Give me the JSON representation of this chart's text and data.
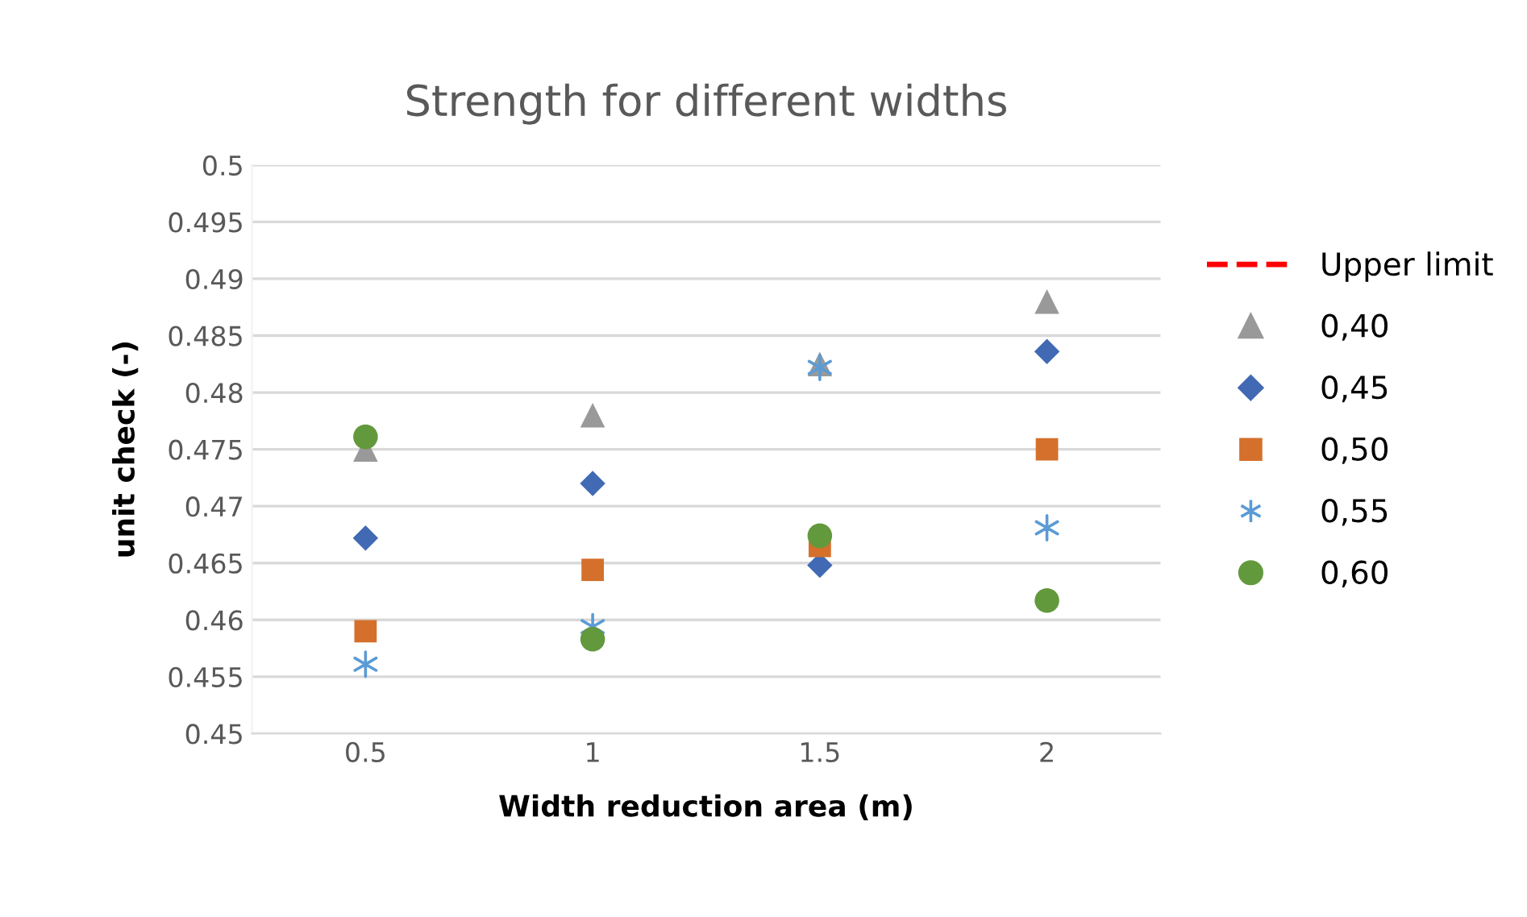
{
  "chart_data": {
    "type": "scatter",
    "title": "Strength for different widths",
    "xlabel": "Width reduction area (m)",
    "ylabel": "unit check (-)",
    "categories": [
      "0.5",
      "1",
      "1.5",
      "2"
    ],
    "ylim": [
      0.45,
      0.5
    ],
    "yticks": [
      0.45,
      0.455,
      0.46,
      0.465,
      0.47,
      0.475,
      0.48,
      0.485,
      0.49,
      0.495,
      0.5
    ],
    "grid": "y",
    "legend": "right",
    "series": [
      {
        "name": "Upper limit",
        "type": "line",
        "line_style": "dashed",
        "color": "#ff0000",
        "values": [
          null,
          null,
          null,
          null
        ]
      },
      {
        "name": "0,40",
        "marker": "triangle",
        "color": "#999999",
        "values": [
          0.475,
          0.478,
          0.4825,
          0.488
        ]
      },
      {
        "name": "0,45",
        "marker": "diamond",
        "color": "#4169b4",
        "values": [
          0.4672,
          0.472,
          0.4648,
          0.4836
        ]
      },
      {
        "name": "0,50",
        "marker": "square",
        "color": "#d4702c",
        "values": [
          0.459,
          0.4644,
          0.4665,
          0.475
        ]
      },
      {
        "name": "0,55",
        "marker": "cross",
        "color": "#5b9bd5",
        "values": [
          0.4561,
          0.4594,
          0.4822,
          0.4681
        ]
      },
      {
        "name": "0,60",
        "marker": "circle",
        "color": "#63993d",
        "values": [
          0.4761,
          0.4583,
          0.4674,
          0.4617
        ]
      }
    ]
  }
}
